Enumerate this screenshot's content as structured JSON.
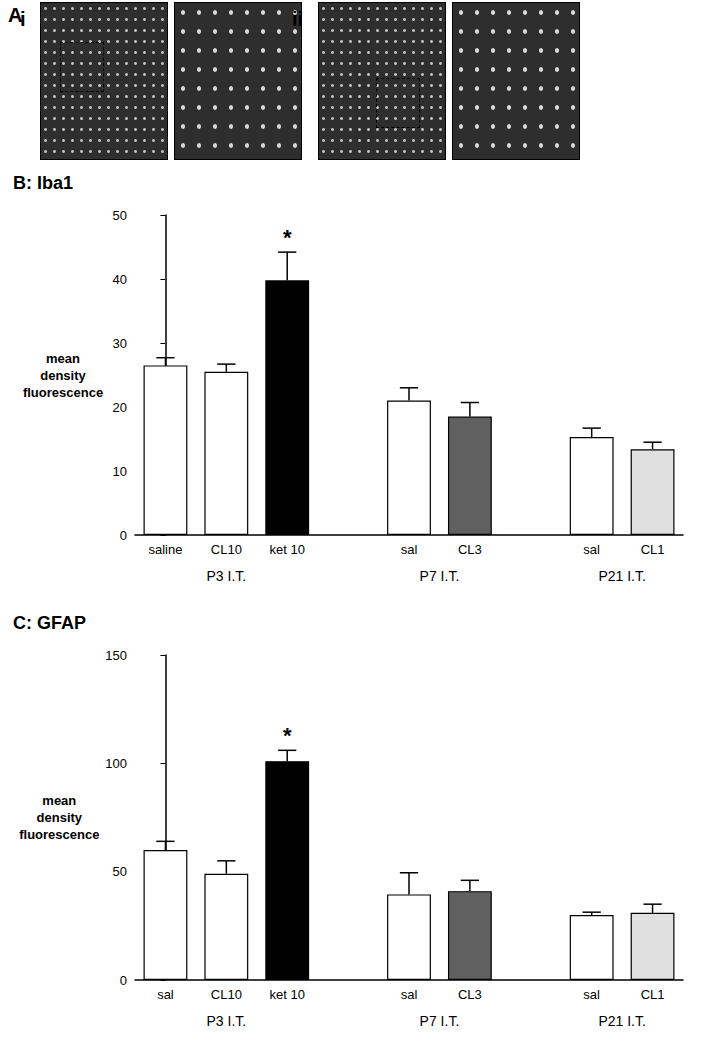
{
  "panel_a": {
    "label": "A",
    "images": [
      {
        "label": "i"
      },
      {
        "label": "ii"
      }
    ]
  },
  "chart_data": [
    {
      "type": "bar",
      "title": "B: Iba1",
      "y_label": "mean density fluorescence",
      "categories": [
        "saline",
        "CL10",
        "ket 10",
        null,
        "sal",
        "CL3",
        null,
        "sal",
        "CL1"
      ],
      "groups": [
        "P3 I.T.",
        "P3 I.T.",
        "P3 I.T.",
        null,
        "P7 I.T.",
        "P7 I.T.",
        null,
        "P21 I.T.",
        "P21 I.T."
      ],
      "values": [
        26.5,
        25.5,
        39.8,
        null,
        21.0,
        18.5,
        null,
        15.3,
        13.4
      ],
      "errors": [
        1.2,
        1.2,
        4.4,
        null,
        2.0,
        2.2,
        null,
        1.4,
        1.1
      ],
      "colors": [
        "#ffffff",
        "#ffffff",
        "#000000",
        null,
        "#ffffff",
        "#606060",
        null,
        "#ffffff",
        "#e0e0e0"
      ],
      "ylim": [
        0,
        50
      ],
      "yticks": [
        0,
        10,
        20,
        30,
        40,
        50
      ],
      "grid": false,
      "annotations": [
        {
          "text": "*",
          "category": "ket 10"
        }
      ]
    },
    {
      "type": "bar",
      "title": "C: GFAP",
      "y_label": "mean density fluorescence",
      "categories": [
        "sal",
        "CL10",
        "ket 10",
        null,
        "sal",
        "CL3",
        null,
        "sal",
        "CL1"
      ],
      "groups": [
        "P3 I.T.",
        "P3 I.T.",
        "P3 I.T.",
        null,
        "P7 I.T.",
        "P7 I.T.",
        null,
        "P21 I.T.",
        "P21 I.T."
      ],
      "values": [
        60,
        49,
        101,
        null,
        39.5,
        41,
        null,
        30,
        31
      ],
      "errors": [
        4,
        6,
        5,
        null,
        10,
        5,
        null,
        1.3,
        4
      ],
      "colors": [
        "#ffffff",
        "#ffffff",
        "#000000",
        null,
        "#ffffff",
        "#606060",
        null,
        "#ffffff",
        "#e0e0e0"
      ],
      "ylim": [
        0,
        150
      ],
      "yticks": [
        0,
        50,
        100,
        150
      ],
      "grid": false,
      "annotations": [
        {
          "text": "*",
          "category": "ket 10"
        }
      ]
    }
  ]
}
